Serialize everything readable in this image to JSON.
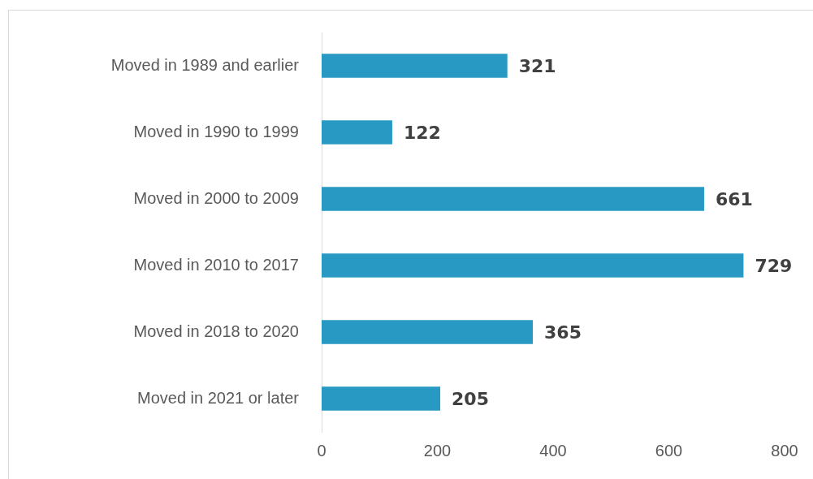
{
  "chart_data": {
    "type": "bar",
    "orientation": "horizontal",
    "categories": [
      "Moved in 1989 and earlier",
      "Moved in 1990 to 1999",
      "Moved in 2000 to 2009",
      "Moved in 2010 to 2017",
      "Moved in 2018 to 2020",
      "Moved in 2021 or later"
    ],
    "values": [
      321,
      122,
      661,
      729,
      365,
      205
    ],
    "color": "#2899c3",
    "xlim": [
      0,
      800
    ],
    "xticks": [
      0,
      200,
      400,
      600,
      800
    ],
    "grid": false,
    "data_labels": true
  }
}
